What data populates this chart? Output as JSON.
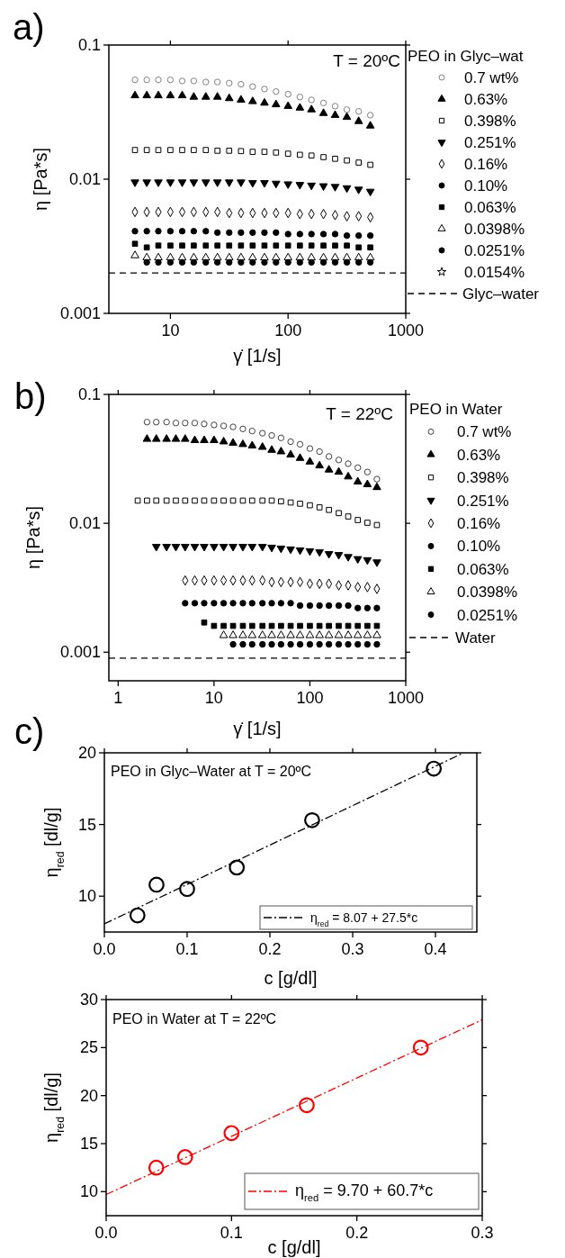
{
  "chart_data": [
    {
      "type": "scatter",
      "log": "xy",
      "xlabel": "γ̇ [1/s]",
      "ylabel": "η [Pa*s]",
      "legend_title": "PEO in Glyc–wat",
      "legend": "right",
      "annotations": [
        "a)",
        "T = 20ºC"
      ],
      "xlim": [
        3,
        1000
      ],
      "xticks": [
        10,
        100,
        1000
      ],
      "ylim": [
        0.001,
        0.1
      ],
      "yticks": [
        0.001,
        0.01,
        0.1
      ],
      "x": [
        5,
        6.3,
        7.9,
        10,
        12.6,
        15.8,
        20,
        25.1,
        31.6,
        39.8,
        50,
        63,
        79,
        100,
        126,
        158,
        200,
        251,
        316,
        398,
        500
      ],
      "series": [
        {
          "name": "0.7 wt%",
          "color": "#808080",
          "marker": "circle-open",
          "values": [
            0.055,
            0.055,
            0.055,
            0.055,
            0.054,
            0.054,
            0.053,
            0.053,
            0.052,
            0.051,
            0.049,
            0.047,
            0.045,
            0.043,
            0.041,
            0.039,
            0.037,
            0.035,
            0.033,
            0.032,
            0.03
          ]
        },
        {
          "name": "0.63%",
          "color": "#000000",
          "marker": "triangle",
          "values": [
            0.042,
            0.042,
            0.042,
            0.042,
            0.042,
            0.041,
            0.041,
            0.041,
            0.04,
            0.039,
            0.038,
            0.037,
            0.036,
            0.035,
            0.034,
            0.033,
            0.031,
            0.03,
            0.029,
            0.027,
            0.025
          ]
        },
        {
          "name": "0.398%",
          "color": "#000000",
          "marker": "square-open",
          "values": [
            0.0165,
            0.0165,
            0.0165,
            0.0165,
            0.0165,
            0.0165,
            0.0165,
            0.0163,
            0.0163,
            0.0162,
            0.016,
            0.016,
            0.0158,
            0.0155,
            0.0152,
            0.015,
            0.0146,
            0.0142,
            0.0138,
            0.0133,
            0.0128
          ]
        },
        {
          "name": "0.251%",
          "color": "#000000",
          "marker": "triangle-down",
          "values": [
            0.0095,
            0.0095,
            0.0095,
            0.0095,
            0.0095,
            0.0095,
            0.0095,
            0.0095,
            0.0095,
            0.0095,
            0.0094,
            0.0094,
            0.0093,
            0.0092,
            0.0091,
            0.009,
            0.0089,
            0.0088,
            0.0086,
            0.0084,
            0.0081
          ]
        },
        {
          "name": "0.16%",
          "color": "#000000",
          "marker": "diamond-open",
          "values": [
            0.0057,
            0.0057,
            0.0057,
            0.0057,
            0.0057,
            0.0057,
            0.0057,
            0.0057,
            0.0056,
            0.0056,
            0.0056,
            0.0056,
            0.0056,
            0.0056,
            0.0055,
            0.0055,
            0.0055,
            0.0054,
            0.0053,
            0.0053,
            0.0052
          ]
        },
        {
          "name": "0.10%",
          "color": "#000000",
          "marker": "circle",
          "values": [
            0.0041,
            0.0041,
            0.0041,
            0.0041,
            0.0041,
            0.0041,
            0.0041,
            0.004,
            0.004,
            0.004,
            0.004,
            0.004,
            0.004,
            0.0039,
            0.0039,
            0.0039,
            0.0039,
            0.0039,
            0.0038,
            0.0038,
            0.0038
          ]
        },
        {
          "name": "0.063%",
          "color": "#000000",
          "marker": "square",
          "values": [
            0.0033,
            0.0031,
            0.0032,
            0.0032,
            0.0032,
            0.0032,
            0.0032,
            0.0032,
            0.0032,
            0.0032,
            0.0032,
            0.0032,
            0.0032,
            0.0032,
            0.0032,
            0.0032,
            0.0032,
            0.0032,
            0.0032,
            0.0031,
            0.0031
          ]
        },
        {
          "name": "0.0398%",
          "color": "#000000",
          "marker": "triangle-open",
          "values": [
            0.0027,
            0.0026,
            0.0026,
            0.0026,
            0.0026,
            0.0026,
            0.0026,
            0.0026,
            0.0026,
            0.0026,
            0.0026,
            0.0026,
            0.0026,
            0.0026,
            0.0026,
            0.0026,
            0.0026,
            0.0026,
            0.0026,
            0.0026,
            0.0026
          ]
        },
        {
          "name": "0.0251%",
          "color": "#000000",
          "marker": "circle",
          "values": [
            null,
            0.0024,
            0.0024,
            0.0024,
            0.0024,
            0.0024,
            0.0024,
            0.0024,
            0.0024,
            0.0024,
            0.0024,
            0.0024,
            0.0024,
            0.0024,
            0.0024,
            0.0024,
            0.0024,
            0.0024,
            0.0024,
            0.0024,
            0.0024
          ]
        },
        {
          "name": "0.0154%",
          "color": "#000000",
          "marker": "star-open",
          "values": [
            null,
            null,
            null,
            null,
            null,
            null,
            null,
            null,
            null,
            null,
            null,
            null,
            null,
            null,
            null,
            null,
            null,
            null,
            null,
            null,
            null
          ]
        }
      ],
      "ref_lines": [
        {
          "axis": "y",
          "value": 0.002,
          "label": "Glyc–water",
          "line_style": "dashed",
          "color": "#000000"
        }
      ]
    },
    {
      "type": "scatter",
      "log": "xy",
      "xlabel": "γ̇ [1/s]",
      "ylabel": "η [Pa*s]",
      "legend_title": "PEO in Water",
      "legend": "right",
      "annotations": [
        "b)",
        "T = 22ºC"
      ],
      "xlim": [
        0.8,
        1000
      ],
      "xticks": [
        1,
        10,
        100,
        1000
      ],
      "ylim": [
        0.0006,
        0.1
      ],
      "yticks": [
        0.001,
        0.01,
        0.1
      ],
      "x": [
        1.6,
        2,
        2.5,
        3.2,
        4,
        5,
        6.3,
        7.9,
        10,
        12.6,
        15.8,
        20,
        25,
        32,
        40,
        50,
        63,
        79,
        100,
        126,
        158,
        200,
        251,
        316,
        398,
        500
      ],
      "series": [
        {
          "name": "0.7 wt%",
          "color": "#404040",
          "marker": "circle-open",
          "values": [
            null,
            0.061,
            0.061,
            0.061,
            0.06,
            0.06,
            0.06,
            0.059,
            0.058,
            0.057,
            0.056,
            0.054,
            0.052,
            0.05,
            0.048,
            0.046,
            0.043,
            0.041,
            0.038,
            0.036,
            0.033,
            0.031,
            0.029,
            0.027,
            0.025,
            0.022
          ]
        },
        {
          "name": "0.63%",
          "color": "#000000",
          "marker": "triangle",
          "values": [
            null,
            0.045,
            0.045,
            0.045,
            0.045,
            0.045,
            0.044,
            0.044,
            0.044,
            0.043,
            0.042,
            0.041,
            0.04,
            0.039,
            0.037,
            0.036,
            0.034,
            0.032,
            0.03,
            0.028,
            0.026,
            0.025,
            0.023,
            0.021,
            0.02,
            0.019
          ]
        },
        {
          "name": "0.398%",
          "color": "#000000",
          "marker": "square-open",
          "values": [
            0.015,
            0.015,
            0.015,
            0.015,
            0.015,
            0.015,
            0.015,
            0.015,
            0.015,
            0.015,
            0.015,
            0.015,
            0.015,
            0.015,
            0.015,
            0.0148,
            0.0145,
            0.0142,
            0.0138,
            0.0133,
            0.0127,
            0.012,
            0.0113,
            0.0106,
            0.0101,
            0.0097
          ]
        },
        {
          "name": "0.251%",
          "color": "#000000",
          "marker": "triangle-down",
          "values": [
            null,
            null,
            0.0066,
            0.0066,
            0.0066,
            0.0066,
            0.0066,
            0.0066,
            0.0066,
            0.0066,
            0.0066,
            0.0066,
            0.0066,
            0.0066,
            0.0065,
            0.0064,
            0.0063,
            0.0062,
            0.0061,
            0.006,
            0.0058,
            0.0057,
            0.0055,
            0.0053,
            0.0052,
            0.005
          ]
        },
        {
          "name": "0.16%",
          "color": "#000000",
          "marker": "diamond-open",
          "values": [
            null,
            null,
            null,
            null,
            null,
            0.0036,
            0.0036,
            0.0036,
            0.0036,
            0.0036,
            0.0036,
            0.0036,
            0.0036,
            0.0036,
            0.0035,
            0.0035,
            0.0035,
            0.0035,
            0.0034,
            0.0034,
            0.0034,
            0.0033,
            0.0033,
            0.0032,
            0.0032,
            0.0031
          ]
        },
        {
          "name": "0.10%",
          "color": "#000000",
          "marker": "circle",
          "values": [
            null,
            null,
            null,
            null,
            null,
            0.0024,
            0.0024,
            0.0024,
            0.0024,
            0.0024,
            0.0024,
            0.0024,
            0.0024,
            0.0024,
            0.0024,
            0.0024,
            0.0024,
            0.0023,
            0.0023,
            0.0023,
            0.0023,
            0.0023,
            0.0023,
            0.0022,
            0.0022,
            0.0022
          ]
        },
        {
          "name": "0.063%",
          "color": "#000000",
          "marker": "square",
          "values": [
            null,
            null,
            null,
            null,
            null,
            null,
            null,
            0.0017,
            0.0016,
            0.0016,
            0.0016,
            0.0016,
            0.0016,
            0.0016,
            0.0016,
            0.0016,
            0.0016,
            0.0016,
            0.0016,
            0.0016,
            0.0016,
            0.0016,
            0.0016,
            0.0016,
            0.0016,
            0.0016
          ]
        },
        {
          "name": "0.0398%",
          "color": "#000000",
          "marker": "triangle-open",
          "values": [
            null,
            null,
            null,
            null,
            null,
            null,
            null,
            null,
            null,
            0.00135,
            0.00135,
            0.00135,
            0.00135,
            0.00135,
            0.00135,
            0.00135,
            0.00135,
            0.00135,
            0.00135,
            0.00135,
            0.00135,
            0.00135,
            0.00135,
            0.00135,
            0.00135,
            0.00135
          ]
        },
        {
          "name": "0.0251%",
          "color": "#000000",
          "marker": "circle",
          "values": [
            null,
            null,
            null,
            null,
            null,
            null,
            null,
            null,
            null,
            null,
            0.00115,
            0.00115,
            0.00115,
            0.00115,
            0.00115,
            0.00115,
            0.00115,
            0.00115,
            0.00115,
            0.00115,
            0.00115,
            0.00115,
            0.00115,
            0.00115,
            0.00115,
            0.00115
          ]
        }
      ],
      "ref_lines": [
        {
          "axis": "y",
          "value": 0.0009,
          "label": "Water",
          "line_style": "dashed",
          "color": "#000000"
        }
      ]
    },
    {
      "type": "scatter",
      "xlabel": "c [g/dl]",
      "ylabel": "η$_{red}$ [dl/g]",
      "legend": "bottom right",
      "annotations": [
        "c)",
        "PEO in Glyc–Water at T = 20ºC"
      ],
      "xlim": [
        0,
        0.45
      ],
      "xticks": [
        {
          "value": 0,
          "label": "0.0"
        },
        0.1,
        0.2,
        0.3,
        0.4
      ],
      "ylim": [
        7.5,
        20
      ],
      "yticks": [
        10,
        15,
        20
      ],
      "series": [
        {
          "color": "#000000",
          "marker": "circle-open",
          "x": [
            0.04,
            0.063,
            0.1,
            0.16,
            0.251,
            0.398
          ],
          "values": [
            8.66,
            10.8,
            10.5,
            12.0,
            15.3,
            18.9
          ]
        },
        {
          "type": "line",
          "name": "η$_{red}$ = 8.07 + 27.5*c",
          "color": "#000000",
          "line_style": "dashdot",
          "x": [
            0,
            0.434
          ],
          "values": [
            8.07,
            20
          ]
        }
      ]
    },
    {
      "type": "scatter",
      "xlabel": "c [g/dl]",
      "ylabel": "η$_{red}$ [dl/g]",
      "legend": "bottom right",
      "annotations": [
        "PEO in Water at T = 22ºC"
      ],
      "xlim": [
        0,
        0.3
      ],
      "xticks": [
        {
          "value": 0,
          "label": "0.0"
        },
        0.1,
        0.2,
        0.3
      ],
      "ylim": [
        7.5,
        30
      ],
      "yticks": [
        10,
        15,
        20,
        25,
        30
      ],
      "series": [
        {
          "color": "#ff0000",
          "marker": "circle-open",
          "x": [
            0.04,
            0.063,
            0.1,
            0.16,
            0.251
          ],
          "values": [
            12.5,
            13.6,
            16.1,
            19.0,
            25.0
          ]
        },
        {
          "type": "line",
          "name": "η$_{red}$ = 9.70 + 60.7*c",
          "color": "#ff0000",
          "line_style": "dashdot",
          "x": [
            0,
            0.3
          ],
          "values": [
            9.7,
            27.9
          ]
        }
      ]
    }
  ]
}
